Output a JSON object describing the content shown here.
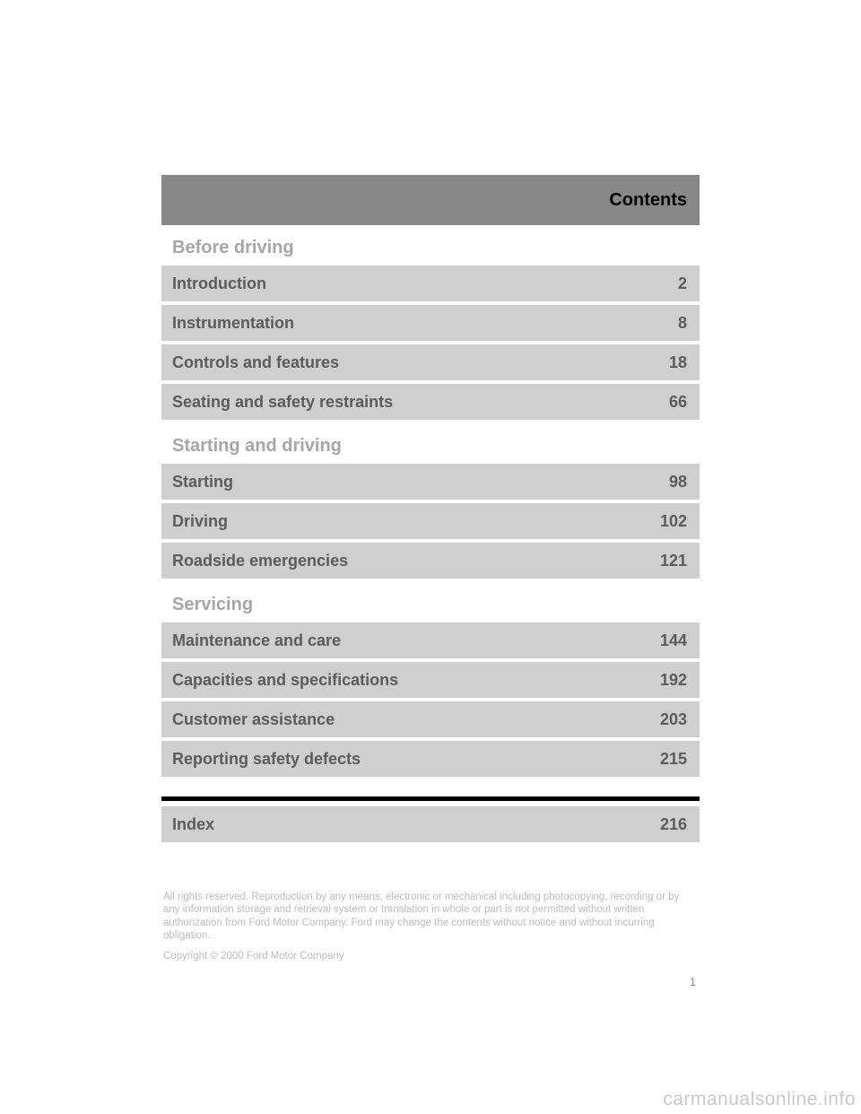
{
  "header": {
    "title": "Contents"
  },
  "sections": {
    "before_driving": {
      "heading": "Before driving",
      "rows": [
        {
          "label": "Introduction",
          "page": "2"
        },
        {
          "label": "Instrumentation",
          "page": "8"
        },
        {
          "label": "Controls and features",
          "page": "18"
        },
        {
          "label": "Seating and safety restraints",
          "page": "66"
        }
      ]
    },
    "starting_and_driving": {
      "heading": "Starting and driving",
      "rows": [
        {
          "label": "Starting",
          "page": "98"
        },
        {
          "label": "Driving",
          "page": "102"
        },
        {
          "label": "Roadside emergencies",
          "page": "121"
        }
      ]
    },
    "servicing": {
      "heading": "Servicing",
      "rows": [
        {
          "label": "Maintenance and care",
          "page": "144"
        },
        {
          "label": "Capacities and specifications",
          "page": "192"
        },
        {
          "label": "Customer assistance",
          "page": "203"
        },
        {
          "label": "Reporting safety defects",
          "page": "215"
        }
      ]
    },
    "index": {
      "rows": [
        {
          "label": "Index",
          "page": "216"
        }
      ]
    }
  },
  "legal": {
    "paragraph": "All rights reserved. Reproduction by any means, electronic or mechanical including photocopying, recording or by any information storage and retrieval system or translation in whole or part is not permitted without written authorization from Ford Motor Company. Ford may change the contents without notice and without incurring obligation.",
    "copyright": "Copyright © 2000 Ford Motor Company"
  },
  "page_number": "1",
  "watermark": "carmanualsonline.info"
}
